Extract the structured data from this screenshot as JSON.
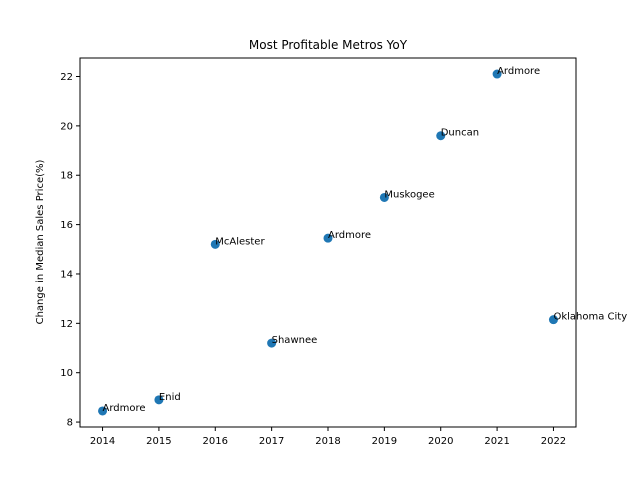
{
  "chart_data": {
    "type": "scatter",
    "title": "Most Profitable Metros YoY",
    "xlabel": "",
    "ylabel": "Change in Median Sales Price(%)",
    "x": [
      2014,
      2015,
      2016,
      2017,
      2018,
      2019,
      2020,
      2021,
      2022
    ],
    "y": [
      8.45,
      8.9,
      15.2,
      11.2,
      15.45,
      17.1,
      19.6,
      22.1,
      12.15
    ],
    "labels": [
      "Ardmore",
      "Enid",
      "McAlester",
      "Shawnee",
      "Ardmore",
      "Muskogee",
      "Duncan",
      "Ardmore",
      "Oklahoma City"
    ],
    "xlim": [
      2013.6,
      2022.4
    ],
    "ylim": [
      7.8,
      22.75
    ],
    "xticks": [
      2014,
      2015,
      2016,
      2017,
      2018,
      2019,
      2020,
      2021,
      2022
    ],
    "yticks": [
      8,
      10,
      12,
      14,
      16,
      18,
      20,
      22
    ],
    "grid": false,
    "marker_color": "#1f77b4"
  }
}
